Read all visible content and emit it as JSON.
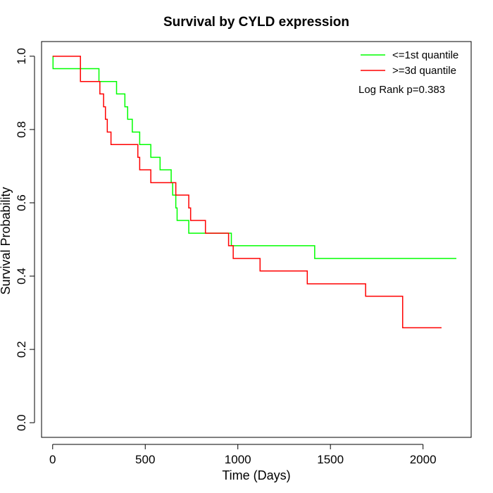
{
  "chart_data": {
    "type": "line",
    "title": "Survival by CYLD expression",
    "xlabel": "Time (Days)",
    "ylabel": "Survival Probability",
    "xlim": [
      -60,
      2260
    ],
    "ylim": [
      -0.04,
      1.04
    ],
    "x_ticks": [
      0,
      500,
      1000,
      1500,
      2000
    ],
    "y_ticks": [
      0.0,
      0.2,
      0.4,
      0.6,
      0.8,
      1.0
    ],
    "x_tick_labels": [
      "0",
      "500",
      "1000",
      "1500",
      "2000"
    ],
    "y_tick_labels": [
      "0.0",
      "0.2",
      "0.4",
      "0.6",
      "0.8",
      "1.0"
    ],
    "grid": false,
    "legend_position": "top-right",
    "annotation": "Log Rank p=0.383",
    "series": [
      {
        "name": "<=1st quantile",
        "color": "#00ff00",
        "step": true,
        "points": [
          [
            0,
            1.0
          ],
          [
            2,
            0.966
          ],
          [
            250,
            0.931
          ],
          [
            345,
            0.897
          ],
          [
            390,
            0.862
          ],
          [
            405,
            0.828
          ],
          [
            430,
            0.793
          ],
          [
            470,
            0.759
          ],
          [
            530,
            0.724
          ],
          [
            580,
            0.69
          ],
          [
            640,
            0.655
          ],
          [
            648,
            0.621
          ],
          [
            665,
            0.586
          ],
          [
            672,
            0.552
          ],
          [
            735,
            0.517
          ],
          [
            965,
            0.483
          ],
          [
            1415,
            0.448
          ],
          [
            2180,
            0.448
          ]
        ]
      },
      {
        "name": ">=3d quantile",
        "color": "#ff0000",
        "step": true,
        "points": [
          [
            0,
            1.0
          ],
          [
            150,
            0.931
          ],
          [
            255,
            0.897
          ],
          [
            275,
            0.862
          ],
          [
            285,
            0.828
          ],
          [
            295,
            0.793
          ],
          [
            315,
            0.759
          ],
          [
            460,
            0.724
          ],
          [
            470,
            0.69
          ],
          [
            530,
            0.655
          ],
          [
            665,
            0.621
          ],
          [
            735,
            0.586
          ],
          [
            745,
            0.552
          ],
          [
            825,
            0.517
          ],
          [
            950,
            0.483
          ],
          [
            975,
            0.448
          ],
          [
            1120,
            0.414
          ],
          [
            1375,
            0.379
          ],
          [
            1690,
            0.345
          ],
          [
            1890,
            0.259
          ],
          [
            2100,
            0.259
          ]
        ]
      }
    ]
  }
}
